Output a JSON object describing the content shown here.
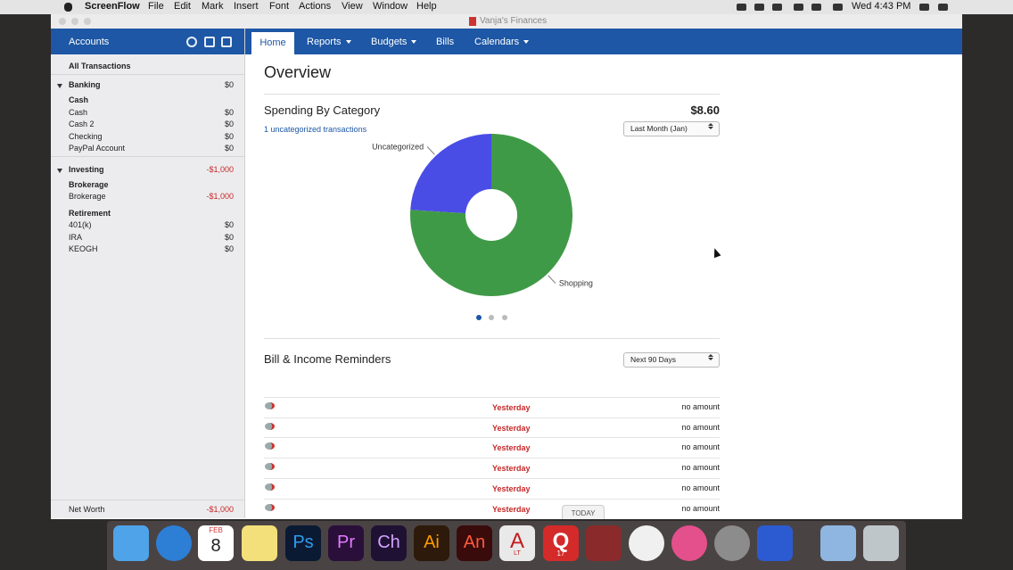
{
  "menu_bar": {
    "app": "ScreenFlow",
    "items": [
      "File",
      "Edit",
      "Mark",
      "Insert",
      "Font",
      "Actions",
      "View",
      "Window",
      "Help"
    ],
    "clock": "Wed 4:43 PM"
  },
  "window": {
    "title": "Vanja's Finances"
  },
  "sidebar": {
    "header": "Accounts",
    "all_transactions": "All Transactions",
    "groups": [
      {
        "name": "Banking",
        "total": "$0",
        "subgroups": [
          {
            "name": "Cash",
            "accounts": [
              {
                "name": "Cash",
                "balance": "$0"
              },
              {
                "name": "Cash 2",
                "balance": "$0"
              },
              {
                "name": "Checking",
                "balance": "$0"
              },
              {
                "name": "PayPal Account",
                "balance": "$0"
              }
            ]
          }
        ]
      },
      {
        "name": "Investing",
        "total": "-$1,000",
        "subgroups": [
          {
            "name": "Brokerage",
            "accounts": [
              {
                "name": "Brokerage",
                "balance": "-$1,000"
              }
            ]
          },
          {
            "name": "Retirement",
            "accounts": [
              {
                "name": "401(k)",
                "balance": "$0"
              },
              {
                "name": "IRA",
                "balance": "$0"
              },
              {
                "name": "KEOGH",
                "balance": "$0"
              }
            ]
          }
        ]
      }
    ],
    "net_worth": {
      "label": "Net Worth",
      "value": "-$1,000"
    }
  },
  "tabs": [
    "Home",
    "Reports",
    "Budgets",
    "Bills",
    "Calendars"
  ],
  "overview": {
    "title": "Overview",
    "spending": {
      "title": "Spending By Category",
      "total": "$8.60",
      "link": "1 uncategorized transactions",
      "period": "Last Month (Jan)"
    },
    "reminders": {
      "title": "Bill & Income Reminders",
      "period": "Next 90 Days",
      "rows": [
        [
          "Yesterday",
          "no amount"
        ],
        [
          "Yesterday",
          "no amount"
        ],
        [
          "Yesterday",
          "no amount"
        ],
        [
          "Yesterday",
          "no amount"
        ],
        [
          "Yesterday",
          "no amount"
        ],
        [
          "Yesterday",
          "no amount"
        ]
      ],
      "today": "TODAY"
    }
  },
  "chart_data": {
    "type": "pie",
    "categories": [
      "Uncategorized",
      "Shopping"
    ],
    "values": [
      24,
      76
    ],
    "colors": [
      "#4a4ce6",
      "#3f9a47"
    ],
    "hole": true
  },
  "dock": {
    "icons": [
      "FEB",
      "8",
      "Ps",
      "Pr",
      "Ch",
      "Ai",
      "An",
      "A",
      "LT",
      "Q",
      "17"
    ]
  }
}
